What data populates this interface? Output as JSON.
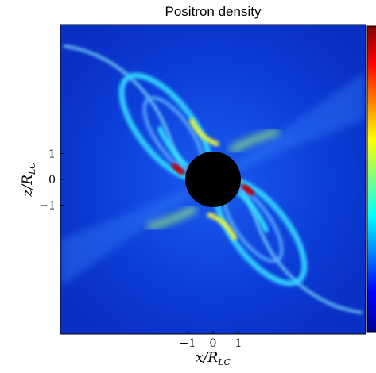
{
  "chart_data": {
    "type": "heatmap",
    "title": "Positron density",
    "xlabel": [
      "x/R",
      "LC"
    ],
    "ylabel": [
      "z/R",
      "LC"
    ],
    "xlim": [
      -6,
      6
    ],
    "ylim": [
      -6,
      6
    ],
    "xticks": [
      {
        "value": -1,
        "label": "−1"
      },
      0,
      1
    ],
    "yticks": [
      1,
      0,
      {
        "value": -1,
        "label": "−1"
      }
    ]
  }
}
